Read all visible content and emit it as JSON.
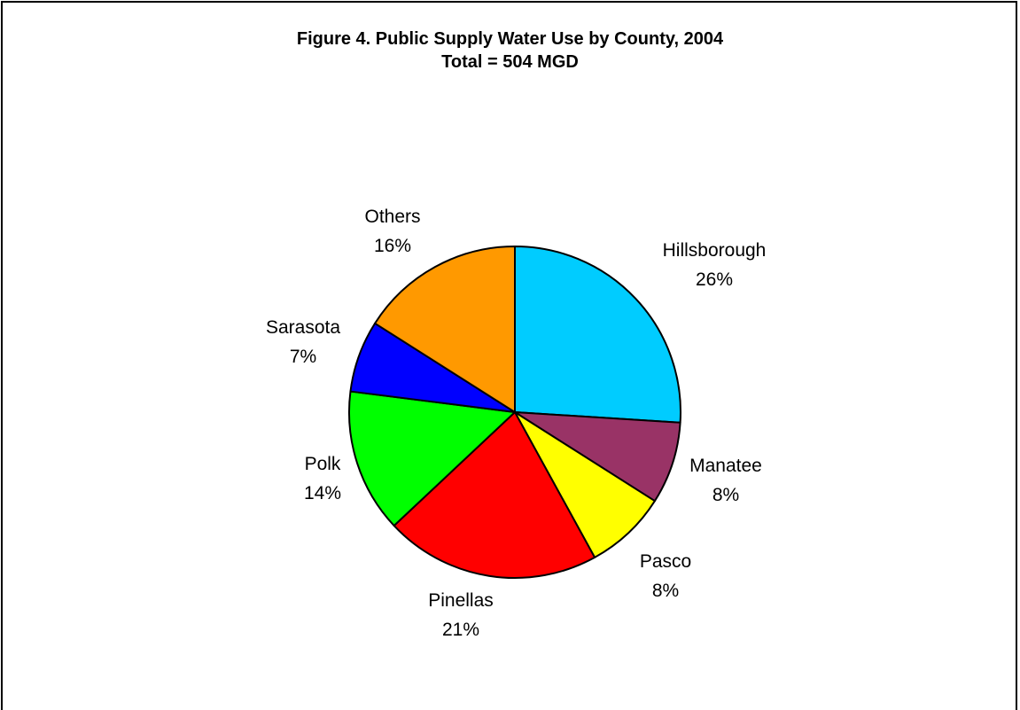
{
  "chart_data": {
    "type": "pie",
    "title": "Figure 4. Public Supply Water Use by County, 2004",
    "subtitle": "Total = 504 MGD",
    "slices": [
      {
        "label": "Hillsborough",
        "value": 26,
        "value_label": "26%",
        "color": "#00CCFF"
      },
      {
        "label": "Manatee",
        "value": 8,
        "value_label": "8%",
        "color": "#993366"
      },
      {
        "label": "Pasco",
        "value": 8,
        "value_label": "8%",
        "color": "#FFFF00"
      },
      {
        "label": "Pinellas",
        "value": 21,
        "value_label": "21%",
        "color": "#FF0000"
      },
      {
        "label": "Polk",
        "value": 14,
        "value_label": "14%",
        "color": "#00FF00"
      },
      {
        "label": "Sarasota",
        "value": 7,
        "value_label": "7%",
        "color": "#0000FF"
      },
      {
        "label": "Others",
        "value": 16,
        "value_label": "16%",
        "color": "#FF9900"
      }
    ],
    "start_direction": "12 o'clock",
    "sweep": "clockwise",
    "legend": "none",
    "labels": "outside"
  }
}
